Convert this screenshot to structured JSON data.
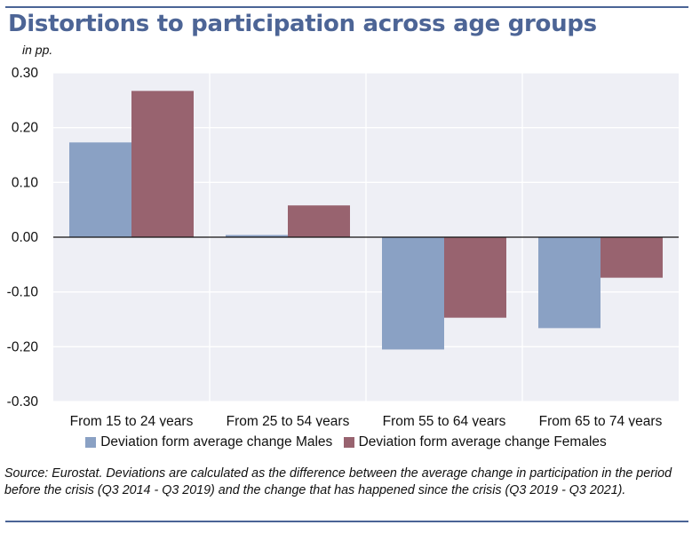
{
  "figure": {
    "title": "Distortions to participation across age groups",
    "units": "in pp.",
    "source_note": "Source: Eurostat. Deviations are calculated as the difference between the average change in participation in the period before the crisis (Q3 2014 - Q3 2019) and the change that has happened since the crisis (Q3 2019 - Q3 2021)."
  },
  "chart_data": {
    "type": "bar",
    "title": "Distortions to participation across age groups",
    "ylabel": "in pp.",
    "xlabel": "",
    "categories": [
      "From 15 to 24 years",
      "From 25 to 54 years",
      "From 55 to 64 years",
      "From 65 to 74 years"
    ],
    "series": [
      {
        "name": "Deviation form average change Males",
        "color": "#8aa1c4",
        "values": [
          0.173,
          0.004,
          -0.205,
          -0.166
        ]
      },
      {
        "name": "Deviation form average change Females",
        "color": "#98636f",
        "values": [
          0.267,
          0.058,
          -0.147,
          -0.074
        ]
      }
    ],
    "ylim": [
      -0.3,
      0.3
    ],
    "yticks": [
      0.3,
      0.2,
      0.1,
      0.0,
      -0.1,
      -0.2,
      -0.3
    ],
    "ytick_labels": [
      "0.30",
      "0.20",
      "0.10",
      "0.00",
      "-0.10",
      "-0.20",
      "-0.30"
    ],
    "grid": true,
    "legend_position": "bottom",
    "plot_background": "#eeeff5"
  }
}
